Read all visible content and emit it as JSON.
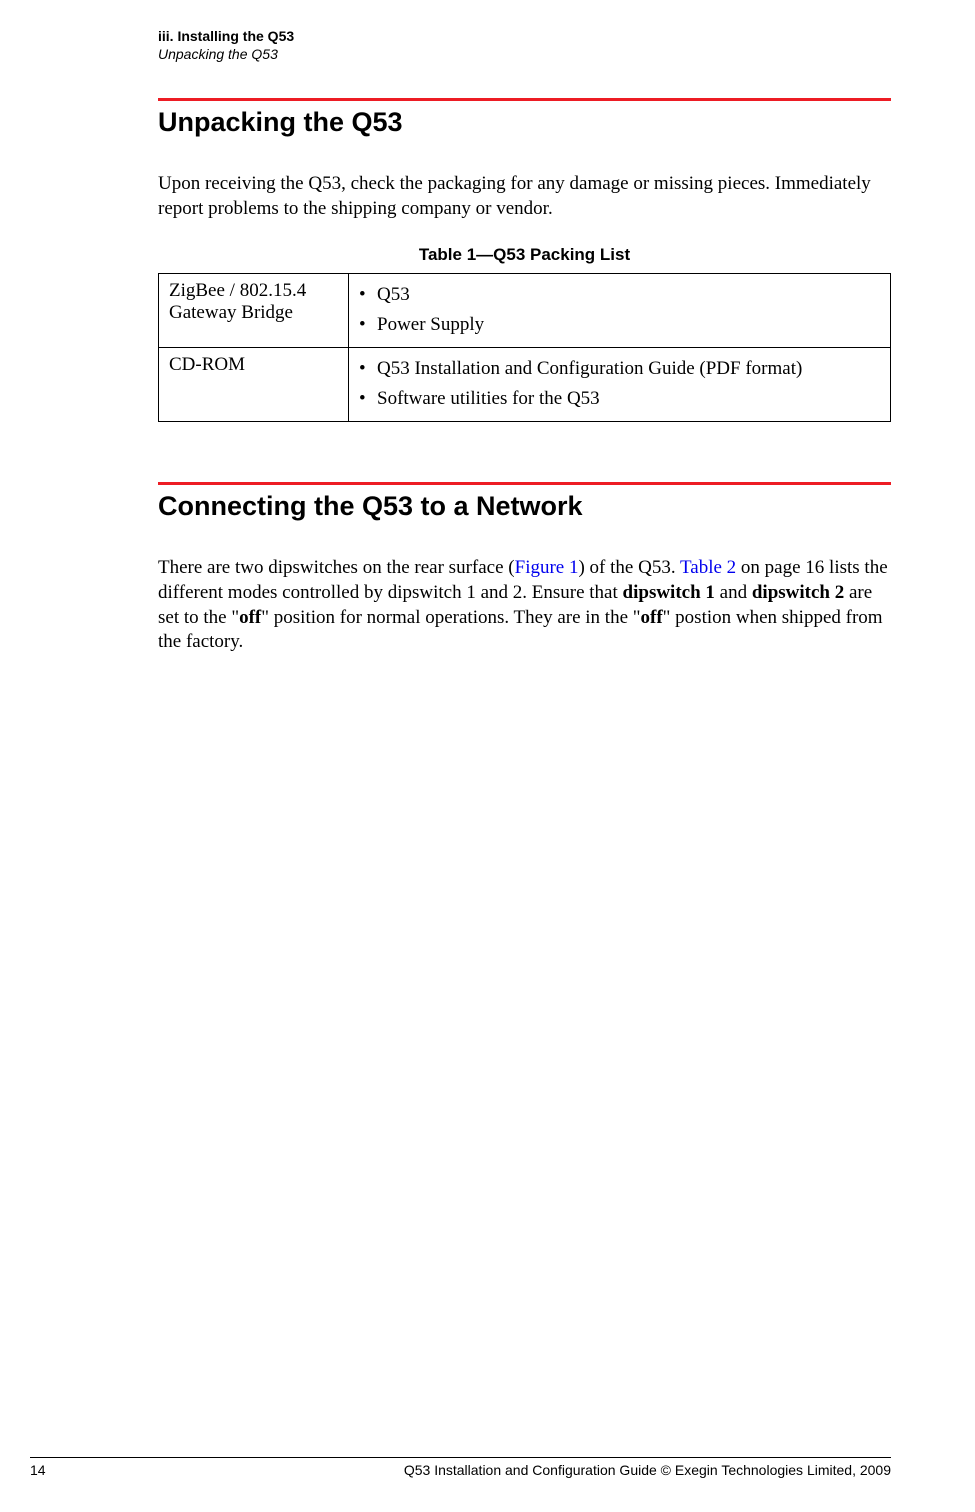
{
  "header": {
    "chapter": "iii. Installing the Q53",
    "section": "Unpacking the Q53"
  },
  "section1": {
    "title": "Unpacking the Q53",
    "para": "Upon receiving the Q53, check the packaging for any damage or missing pieces. Immediately report problems to the shipping company or vendor."
  },
  "table1": {
    "caption": "Table 1—Q53 Packing List",
    "row1": {
      "label": "ZigBee / 802.15.4 Gateway Bridge",
      "items": [
        "Q53",
        "Power Supply"
      ]
    },
    "row2": {
      "label": "CD-ROM",
      "items": [
        "Q53 Installation and Configuration Guide (PDF format)",
        "Software utilities for the Q53"
      ]
    }
  },
  "section2": {
    "title": "Connecting the Q53 to a Network",
    "para_parts": {
      "t1": "There are two dipswitches on the rear surface (",
      "l1": "Figure 1",
      "t2": ") of the Q53. ",
      "l2": "Table 2",
      "t3": " on page 16 lists the different modes controlled by dipswitch 1 and 2. Ensure that ",
      "b1": "dipswitch 1",
      "t4": " and ",
      "b2": "dipswitch 2",
      "t5": " are set to the \"",
      "b3": "off",
      "t6": "\" position for normal operations. They are in the \"",
      "b4": "off",
      "t7": "\" postion when shipped from the factory."
    }
  },
  "footer": {
    "page": "14",
    "text": "Q53 Installation and Configuration Guide  © Exegin Technologies Limited, 2009"
  }
}
